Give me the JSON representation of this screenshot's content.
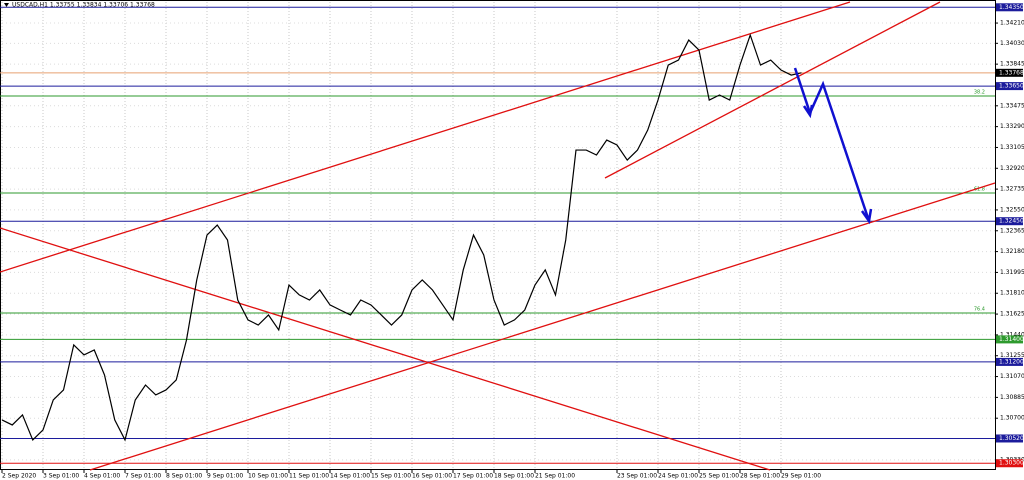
{
  "chart_data": {
    "type": "line",
    "title": "USDCAD,H1  1.33755 1.33834 1.33706 1.33768",
    "x": [
      0,
      0.25,
      0.5,
      0.75,
      1,
      1.25,
      1.5,
      1.75,
      2,
      2.25,
      2.5,
      2.75,
      3,
      3.25,
      3.5,
      3.75,
      4,
      4.25,
      4.5,
      4.75,
      5,
      5.25,
      5.5,
      5.75,
      6,
      6.25,
      6.5,
      6.75,
      7,
      7.25,
      7.5,
      7.75,
      8,
      8.25,
      8.5,
      8.75,
      9,
      9.25,
      9.5,
      9.75,
      10,
      10.25,
      10.5,
      10.75,
      11,
      11.25,
      11.5,
      11.75,
      12,
      12.25,
      12.5,
      12.75,
      13,
      13.25,
      13.5,
      13.75,
      14,
      14.25,
      14.5,
      14.75,
      15,
      15.25,
      15.5,
      15.75,
      16,
      16.25,
      16.5,
      16.75,
      17,
      17.25,
      17.5,
      17.75,
      18,
      18.25,
      18.5,
      18.75,
      19,
      19.25,
      19.5
    ],
    "series": [
      {
        "color": "#000000",
        "values": [
          1.30685,
          1.3064,
          1.30729,
          1.30507,
          1.30596,
          1.30862,
          1.30951,
          1.31351,
          1.31262,
          1.31306,
          1.31084,
          1.30685,
          1.30507,
          1.30862,
          1.30995,
          1.30907,
          1.30951,
          1.3104,
          1.31395,
          1.31928,
          1.32327,
          1.32416,
          1.32283,
          1.3175,
          1.31573,
          1.31528,
          1.31617,
          1.31484,
          1.31883,
          1.31795,
          1.3175,
          1.31839,
          1.31706,
          1.31661,
          1.31617,
          1.3175,
          1.31706,
          1.31617,
          1.31528,
          1.31617,
          1.31839,
          1.31928,
          1.31839,
          1.31706,
          1.31573,
          1.32017,
          1.32327,
          1.3215,
          1.3175,
          1.31528,
          1.31573,
          1.31661,
          1.31883,
          1.32017,
          1.31795,
          1.32283,
          1.33082,
          1.33082,
          1.33038,
          1.33171,
          1.33127,
          1.32993,
          1.33082,
          1.3326,
          1.33526,
          1.33837,
          1.33881,
          1.34059,
          1.3397,
          1.33526,
          1.33571,
          1.33526,
          1.33837,
          1.34103,
          1.33837,
          1.33881,
          1.33793,
          1.33748,
          1.33768
        ]
      }
    ],
    "xlim": [
      0,
      24.22
    ],
    "ylim": [
      1.3024,
      1.34397
    ],
    "xticks": [
      {
        "value": 0,
        "label": "2 Sep 2020"
      },
      {
        "value": 1,
        "label": "3 Sep 01:00"
      },
      {
        "value": 2,
        "label": "4 Sep 01:00"
      },
      {
        "value": 3,
        "label": "7 Sep 01:00"
      },
      {
        "value": 4,
        "label": "8 Sep 01:00"
      },
      {
        "value": 5,
        "label": "9 Sep 01:00"
      },
      {
        "value": 6,
        "label": "10 Sep 01:00"
      },
      {
        "value": 7,
        "label": "11 Sep 01:00"
      },
      {
        "value": 8,
        "label": "14 Sep 01:00"
      },
      {
        "value": 9,
        "label": "15 Sep 01:00"
      },
      {
        "value": 10,
        "label": "16 Sep 01:00"
      },
      {
        "value": 11,
        "label": "17 Sep 01:00"
      },
      {
        "value": 12,
        "label": "18 Sep 01:00"
      },
      {
        "value": 13,
        "label": "21 Sep 01:00"
      },
      {
        "value": 15,
        "label": "23 Sep 01:00"
      },
      {
        "value": 16,
        "label": "24 Sep 01:00"
      },
      {
        "value": 17,
        "label": "25 Sep 01:00"
      },
      {
        "value": 18,
        "label": "28 Sep 01:00"
      },
      {
        "value": 19,
        "label": "29 Sep 01:00"
      }
    ],
    "yticks": [
      {
        "value": 1.3421,
        "label": "1.34210"
      },
      {
        "value": 1.3403,
        "label": "1.34030"
      },
      {
        "value": 1.33845,
        "label": "1.33845"
      },
      {
        "value": 1.33475,
        "label": "1.33475"
      },
      {
        "value": 1.3329,
        "label": "1.33290"
      },
      {
        "value": 1.33105,
        "label": "1.33105"
      },
      {
        "value": 1.3292,
        "label": "1.32920"
      },
      {
        "value": 1.32735,
        "label": "1.32735"
      },
      {
        "value": 1.3255,
        "label": "1.32550"
      },
      {
        "value": 1.32365,
        "label": "1.32365"
      },
      {
        "value": 1.3218,
        "label": "1.32180"
      },
      {
        "value": 1.31995,
        "label": "1.31995"
      },
      {
        "value": 1.3181,
        "label": "1.31810"
      },
      {
        "value": 1.31625,
        "label": "1.31625"
      },
      {
        "value": 1.3144,
        "label": "1.31440"
      },
      {
        "value": 1.31255,
        "label": "1.31255"
      },
      {
        "value": 1.3107,
        "label": "1.31070"
      },
      {
        "value": 1.30885,
        "label": "1.30885"
      },
      {
        "value": 1.307,
        "label": "1.30700"
      },
      {
        "value": 1.3033,
        "label": "1.30330"
      }
    ],
    "grid": true,
    "levels": [
      {
        "value": 1.3435,
        "label": "1.34350",
        "color": "#1c1c9c"
      },
      {
        "value": 1.33768,
        "label": "1.33768",
        "color": "#e8a070"
      },
      {
        "value": 1.3365,
        "label": "1.33650",
        "color": "#1c1c9c"
      },
      {
        "value": 1.33562,
        "fib": "38.2",
        "color": "#2e9a2e"
      },
      {
        "value": 1.327,
        "fib": "61.8",
        "color": "#2e9a2e"
      },
      {
        "value": 1.3245,
        "label": "1.32450",
        "color": "#1c1c9c"
      },
      {
        "value": 1.31635,
        "fib": "76.4",
        "color": "#2e9a2e"
      },
      {
        "value": 1.314,
        "label": "1.31400",
        "color": "#2e9a2e"
      },
      {
        "value": 1.312,
        "label": "1.31200",
        "color": "#1c1c9c"
      },
      {
        "value": 1.3052,
        "label": "1.30520",
        "color": "#1c1c9c"
      },
      {
        "value": 1.303,
        "label": "1.30300",
        "color": "#e01010"
      }
    ]
  }
}
